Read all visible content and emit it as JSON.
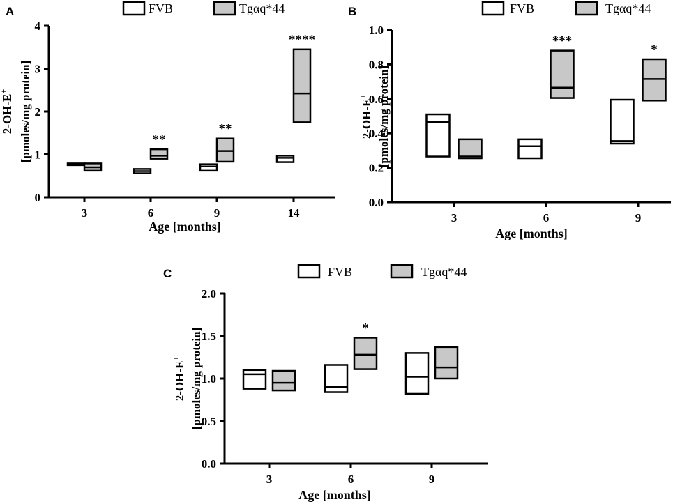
{
  "colors": {
    "fvb_fill": "#ffffff",
    "tg_fill": "#c8c8c8",
    "stroke": "#000000"
  },
  "chart_data": [
    {
      "panel": "A",
      "type": "box",
      "xlabel": "Age [months]",
      "ylabel_line1": "2-OH-E",
      "ylabel_sup": "+",
      "ylabel_line2": "[pmoles/mg protein]",
      "ylim": [
        0,
        4
      ],
      "yticks": [
        0,
        1,
        2,
        3,
        4
      ],
      "ytick_labels": [
        "0",
        "1",
        "2",
        "3",
        "4"
      ],
      "categories": [
        "3",
        "6",
        "9",
        "14"
      ],
      "legend": [
        "FVB",
        "Tgαq*44"
      ],
      "series": [
        {
          "name": "FVB",
          "boxes": [
            {
              "low": 0.75,
              "mid": 0.77,
              "high": 0.79
            },
            {
              "low": 0.56,
              "mid": 0.61,
              "high": 0.66
            },
            {
              "low": 0.62,
              "mid": 0.72,
              "high": 0.77
            },
            {
              "low": 0.82,
              "mid": 0.92,
              "high": 0.97
            }
          ]
        },
        {
          "name": "Tgαq*44",
          "boxes": [
            {
              "low": 0.62,
              "mid": 0.7,
              "high": 0.79
            },
            {
              "low": 0.9,
              "mid": 0.97,
              "high": 1.12
            },
            {
              "low": 0.83,
              "mid": 1.08,
              "high": 1.37
            },
            {
              "low": 1.75,
              "mid": 2.42,
              "high": 3.45
            }
          ]
        }
      ],
      "significance": [
        {
          "category": "6",
          "series": 1,
          "label": "**"
        },
        {
          "category": "9",
          "series": 1,
          "label": "**"
        },
        {
          "category": "14",
          "series": 1,
          "label": "****"
        }
      ]
    },
    {
      "panel": "B",
      "type": "box",
      "xlabel": "Age [months]",
      "ylabel_line1": "2-OH-E",
      "ylabel_sup": "+",
      "ylabel_line2": "[pmoles/mg protein]",
      "ylim": [
        0,
        1.0
      ],
      "yticks": [
        0,
        0.2,
        0.4,
        0.6,
        0.8,
        1.0
      ],
      "ytick_labels": [
        "0.0",
        "0.2",
        "0.4",
        "0.6",
        "0.8",
        "1.0"
      ],
      "categories": [
        "3",
        "6",
        "9"
      ],
      "legend": [
        "FVB",
        "Tgαq*44"
      ],
      "series": [
        {
          "name": "FVB",
          "boxes": [
            {
              "low": 0.265,
              "mid": 0.465,
              "high": 0.51
            },
            {
              "low": 0.255,
              "mid": 0.325,
              "high": 0.365
            },
            {
              "low": 0.34,
              "mid": 0.355,
              "high": 0.595
            }
          ]
        },
        {
          "name": "Tgαq*44",
          "boxes": [
            {
              "low": 0.255,
              "mid": 0.265,
              "high": 0.365
            },
            {
              "low": 0.605,
              "mid": 0.665,
              "high": 0.88
            },
            {
              "low": 0.59,
              "mid": 0.715,
              "high": 0.83
            }
          ]
        }
      ],
      "significance": [
        {
          "category": "6",
          "series": 1,
          "label": "***"
        },
        {
          "category": "9",
          "series": 1,
          "label": "*"
        }
      ]
    },
    {
      "panel": "C",
      "type": "box",
      "xlabel": "Age [months]",
      "ylabel_line1": "2-OH-E",
      "ylabel_sup": "+",
      "ylabel_line2": "[pmoles/mg protein]",
      "ylim": [
        0,
        2.0
      ],
      "yticks": [
        0,
        0.5,
        1.0,
        1.5,
        2.0
      ],
      "ytick_labels": [
        "0.0",
        "0.5",
        "1.0",
        "1.5",
        "2.0"
      ],
      "categories": [
        "3",
        "6",
        "9"
      ],
      "legend": [
        "FVB",
        "Tgαq*44"
      ],
      "series": [
        {
          "name": "FVB",
          "boxes": [
            {
              "low": 0.88,
              "mid": 1.05,
              "high": 1.1
            },
            {
              "low": 0.84,
              "mid": 0.9,
              "high": 1.16
            },
            {
              "low": 0.82,
              "mid": 1.02,
              "high": 1.3
            }
          ]
        },
        {
          "name": "Tgαq*44",
          "boxes": [
            {
              "low": 0.86,
              "mid": 0.95,
              "high": 1.09
            },
            {
              "low": 1.11,
              "mid": 1.28,
              "high": 1.48
            },
            {
              "low": 1.0,
              "mid": 1.13,
              "high": 1.37
            }
          ]
        }
      ],
      "significance": [
        {
          "category": "6",
          "series": 1,
          "label": "*"
        }
      ]
    }
  ]
}
